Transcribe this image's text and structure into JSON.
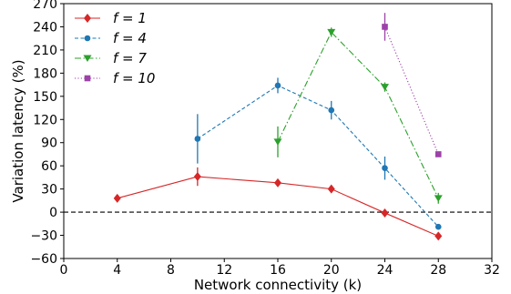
{
  "chart_data": {
    "type": "line",
    "xlabel": "Network connectivity (k)",
    "ylabel": "Variation latency (%)",
    "xlim": [
      0,
      32
    ],
    "ylim": [
      -60,
      270
    ],
    "xticks": [
      0,
      4,
      8,
      12,
      16,
      20,
      24,
      28,
      32
    ],
    "yticks": [
      -60,
      -30,
      0,
      30,
      60,
      90,
      120,
      150,
      180,
      210,
      240,
      270
    ],
    "grid": false,
    "legend_position": "top-left",
    "reference_line": {
      "y": 0,
      "style": "dashed",
      "color": "#000000"
    },
    "series": [
      {
        "name": "f = 1",
        "color": "#d62728",
        "marker": "diamond",
        "linestyle": "solid",
        "points": [
          {
            "x": 4,
            "y": 18,
            "err": 0
          },
          {
            "x": 10,
            "y": 46,
            "err": 12
          },
          {
            "x": 16,
            "y": 38,
            "err": 3
          },
          {
            "x": 20,
            "y": 30,
            "err": 5
          },
          {
            "x": 24,
            "y": -1,
            "err": 2
          },
          {
            "x": 28,
            "y": -31,
            "err": 3
          }
        ]
      },
      {
        "name": "f = 4",
        "color": "#1f77b4",
        "marker": "circle",
        "linestyle": "dashed",
        "points": [
          {
            "x": 10,
            "y": 95,
            "err": 32
          },
          {
            "x": 16,
            "y": 164,
            "err": 10
          },
          {
            "x": 20,
            "y": 132,
            "err": 12
          },
          {
            "x": 24,
            "y": 57,
            "err": 15
          },
          {
            "x": 28,
            "y": -19,
            "err": 3
          }
        ]
      },
      {
        "name": "f = 7",
        "color": "#2ca02c",
        "marker": "triangle-down",
        "linestyle": "dashdot",
        "points": [
          {
            "x": 16,
            "y": 91,
            "err": 20
          },
          {
            "x": 20,
            "y": 233,
            "err": 6
          },
          {
            "x": 24,
            "y": 162,
            "err": 6
          },
          {
            "x": 28,
            "y": 18,
            "err": 7
          }
        ]
      },
      {
        "name": "f = 10",
        "color": "#9c42a8",
        "marker": "square",
        "linestyle": "dotted",
        "points": [
          {
            "x": 24,
            "y": 240,
            "err": 18
          },
          {
            "x": 28,
            "y": 75,
            "err": 0
          }
        ]
      }
    ]
  }
}
